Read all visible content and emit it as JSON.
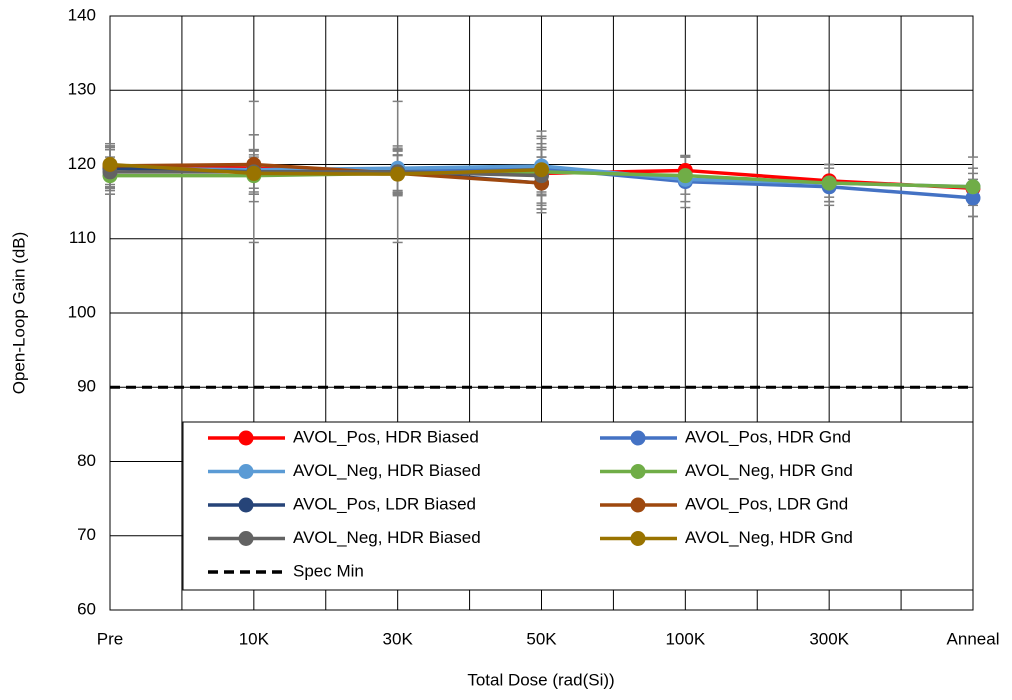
{
  "chart_data": {
    "type": "line",
    "x_label": "Total Dose (rad(Si))",
    "y_label": "Open-Loop Gain (dB)",
    "categories": [
      "Pre",
      "10K",
      "30K",
      "50K",
      "100K",
      "300K",
      "Anneal"
    ],
    "ylim": [
      60,
      140
    ],
    "yticks": [
      60,
      70,
      80,
      90,
      100,
      110,
      120,
      130,
      140
    ],
    "grid": true,
    "legend": "bottom",
    "series": [
      {
        "name": "AVOL_Pos, HDR Biased",
        "color": "#ff0000",
        "values": [
          119.8,
          119.5,
          119.0,
          118.8,
          119.2,
          117.8,
          116.8
        ],
        "errors": [
          2.5,
          4.5,
          3.0,
          4.0,
          2.0,
          2.2,
          2.0
        ]
      },
      {
        "name": "AVOL_Pos, HDR Gnd",
        "color": "#4472c4",
        "values": [
          119.5,
          119.0,
          119.2,
          119.5,
          117.7,
          117.0,
          115.5
        ],
        "errors": [
          3.0,
          3.0,
          3.0,
          5.0,
          3.5,
          2.5,
          2.5
        ]
      },
      {
        "name": "AVOL_Neg, HDR Biased",
        "color": "#5b9bd5",
        "values": [
          119.5,
          119.3,
          119.5,
          119.8,
          118.0,
          117.5,
          117.0
        ],
        "errors": [
          2.5,
          2.5,
          3.0,
          4.0,
          3.0,
          2.5,
          4.0
        ]
      },
      {
        "name": "AVOL_Neg, HDR Gnd",
        "color": "#70ad47",
        "values": [
          118.5,
          118.5,
          118.8,
          119.0,
          118.5,
          117.5,
          117.0
        ],
        "errors": [
          2.5,
          2.5,
          2.5,
          3.0,
          2.5,
          2.5,
          2.5
        ]
      },
      {
        "name": "AVOL_Pos, LDR Biased",
        "color": "#264478",
        "values": [
          119.5,
          119.0,
          119.0,
          117.5,
          null,
          null,
          null
        ],
        "errors": [
          3.0,
          3.0,
          3.0,
          3.5,
          null,
          null,
          null
        ]
      },
      {
        "name": "AVOL_Pos, LDR Gnd",
        "color": "#9e480e",
        "values": [
          119.8,
          120.0,
          118.8,
          117.5,
          null,
          null,
          null
        ],
        "errors": [
          3.0,
          4.0,
          3.0,
          3.5,
          null,
          null,
          null
        ]
      },
      {
        "name": "AVOL_Neg, HDR Biased",
        "color": "#636363",
        "values": [
          119.0,
          119.0,
          119.0,
          118.5,
          null,
          null,
          null
        ],
        "errors": [
          3.0,
          9.5,
          9.5,
          5.0,
          null,
          null,
          null
        ]
      },
      {
        "name": "AVOL_Neg, HDR Gnd",
        "color": "#997300",
        "values": [
          120.0,
          118.8,
          118.7,
          119.3,
          null,
          null,
          null
        ],
        "errors": [
          2.0,
          2.5,
          2.5,
          3.0,
          null,
          null,
          null
        ]
      },
      {
        "name": "Spec Min",
        "color": "#000000",
        "dashed": true,
        "values": [
          90,
          90,
          90,
          90,
          90,
          90,
          90
        ]
      }
    ]
  }
}
